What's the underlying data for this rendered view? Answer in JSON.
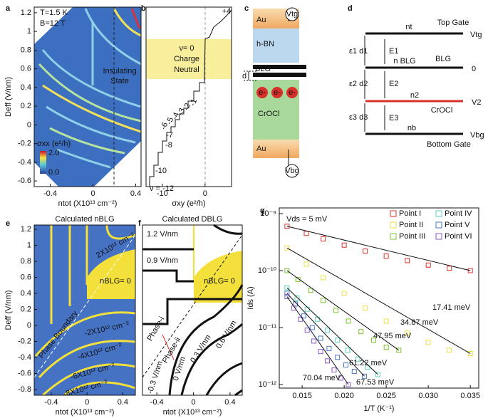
{
  "panel_labels": [
    "a",
    "b",
    "c",
    "d",
    "e",
    "f",
    "g"
  ],
  "panels": {
    "a": {
      "xlabel": "ntot (X10¹³ cm⁻²)",
      "ylabel": "Deff (V/nm)",
      "xlim": [
        -0.55,
        0.45
      ],
      "ylim": [
        -0.66,
        1.26
      ],
      "xticks": [
        -0.4,
        0,
        0.4
      ],
      "yticks": [
        -0.6,
        -0.4,
        -0.2,
        0,
        0.2,
        0.4,
        0.6,
        0.8,
        1,
        1.2
      ],
      "annotations": [
        "T=1.5 K",
        "B=12 T",
        "Insulating",
        "State"
      ],
      "colorbar": {
        "title": "σxx (e²/h)",
        "ticks": [
          "2.0",
          "0.0"
        ]
      }
    },
    "b": {
      "xlabel": "σxy (e²/h)",
      "xlim": [
        -13.8,
        6.2
      ],
      "xticks": [
        -10,
        0
      ],
      "annotations": [
        "ν= 0",
        "Charge",
        "Neutral",
        "+4",
        "-1",
        "-2",
        "-3",
        "-4",
        "-5",
        "-6",
        "-7",
        "-8",
        "-10",
        "ν = -12"
      ]
    },
    "c": {
      "annotations": [
        "Au",
        "h-BN",
        "BLG",
        "d",
        "e-",
        "e-",
        "e-",
        "CrOCl",
        "Au",
        "Vtg",
        "Vbg"
      ]
    },
    "d": {
      "annotations": [
        "Top Gate",
        "nt",
        "Vtg",
        "ε1 d1",
        "E1",
        "n BLG",
        "BLG",
        "0",
        "ε2 d2",
        "E2",
        "n2",
        "V2",
        "CrOCl",
        "ε3 d3",
        "E3",
        "nb",
        "Vbg",
        "Bottom Gate"
      ]
    },
    "e": {
      "title": "Calculated nBLG",
      "xlabel": "ntot (X10¹³ cm⁻²)",
      "ylabel": "Deff (V/nm)",
      "xlim": [
        -0.59,
        0.54
      ],
      "ylim": [
        -0.871,
        1.253
      ],
      "xticks": [
        -0.4,
        0,
        0.4
      ],
      "yticks": [
        -0.8,
        -0.6,
        -0.4,
        -0.2,
        0,
        0.2,
        0.4,
        0.6,
        0.8,
        1,
        1.2
      ],
      "annotations": [
        "2X10¹² cm⁻²",
        "nBLG= 0",
        "-2X10¹² cm⁻²",
        "-4X10¹² cm⁻²",
        "-6X10¹² cm⁻²",
        "-8X10¹² cm⁻²",
        "Phase Boundary"
      ]
    },
    "f": {
      "title": "Calculated DBLG",
      "xlabel": "ntot (X10¹³ cm⁻²)",
      "xlim": [
        -0.557,
        0.533
      ],
      "ylim": [
        -0.871,
        1.253
      ],
      "xticks": [
        -0.4,
        0,
        0.4
      ],
      "annotations": [
        "1.2 V/nm",
        "0.9 V/nm",
        "nBLG= 0",
        "0.6 V/nm",
        "0.3 V/nm",
        "0 V/nm",
        "-0.3 V/nm",
        "Phase-i",
        "Phase-ii"
      ]
    }
  },
  "chart_data": {
    "type": "scatter",
    "annotation": "Vds = 5 mV",
    "xlabel": "1/T (K⁻¹)",
    "ylabel": "Ids (A)",
    "log_y": true,
    "legend": "upper right",
    "xlim": [
      0.01228,
      0.036
    ],
    "ylim": [
      8.66e-13,
      1.26e-09
    ],
    "xticks": [
      {
        "value": 0.015,
        "label": "0.015"
      },
      {
        "value": 0.02,
        "label": "0.020"
      },
      {
        "value": 0.025,
        "label": "0.025"
      },
      {
        "value": 0.03,
        "label": "0.030"
      },
      {
        "value": 0.035,
        "label": "0.035"
      }
    ],
    "yticks": [
      {
        "value": 1e-12,
        "label": "10⁻¹²"
      },
      {
        "value": 1e-11,
        "label": "10⁻¹¹"
      },
      {
        "value": 1e-10,
        "label": "10⁻¹⁰"
      },
      {
        "value": 1e-09,
        "label": "10⁻⁹"
      }
    ],
    "series": [
      {
        "name": "Point I",
        "color": "#e0302a",
        "fit_label": "17.41 meV",
        "x": [
          0.0132,
          0.0155,
          0.0175,
          0.02,
          0.0225,
          0.025,
          0.0275,
          0.03,
          0.0325,
          0.035
        ],
        "values": [
          6e-10,
          4.5e-10,
          3.6e-10,
          2.8e-10,
          2.2e-10,
          1.8e-10,
          1.5e-10,
          1.25e-10,
          1.1e-10,
          1e-10
        ]
      },
      {
        "name": "Point II",
        "color": "#eede45",
        "fit_label": "34.87 meV",
        "x": [
          0.0132,
          0.0155,
          0.0175,
          0.02,
          0.0225,
          0.025,
          0.0275,
          0.03,
          0.0325,
          0.035
        ],
        "values": [
          2.5e-10,
          1.3e-10,
          7.5e-11,
          4e-11,
          2.2e-11,
          1.3e-11,
          8e-12,
          5.5e-12,
          4e-12,
          3.5e-12
        ]
      },
      {
        "name": "Point III",
        "color": "#7cc42c",
        "fit_label": "47.95 meV",
        "x": [
          0.0132,
          0.0145,
          0.016,
          0.0175,
          0.019,
          0.0205,
          0.022,
          0.0235,
          0.025,
          0.0265
        ],
        "values": [
          1e-10,
          7e-11,
          4.5e-11,
          3e-11,
          2e-11,
          1.3e-11,
          8.5e-12,
          6e-12,
          4.5e-12,
          4e-12
        ]
      },
      {
        "name": "Point IV",
        "color": "#5fd3c0",
        "fit_label": "61.22 meV",
        "x": [
          0.0132,
          0.0144,
          0.0156,
          0.0168,
          0.018,
          0.0192,
          0.0204,
          0.0216,
          0.0228,
          0.024
        ],
        "values": [
          5e-11,
          3.3e-11,
          2.1e-11,
          1.4e-11,
          9e-12,
          6e-12,
          4e-12,
          2.8e-12,
          2e-12,
          1.5e-12
        ]
      },
      {
        "name": "Point V",
        "color": "#4a78c8",
        "fit_label": "67.53 meV",
        "x": [
          0.0132,
          0.0142,
          0.0152,
          0.0162,
          0.0172,
          0.0182,
          0.0192,
          0.0202,
          0.0212,
          0.0224
        ],
        "values": [
          4e-11,
          2.6e-11,
          1.6e-11,
          1e-11,
          6.5e-12,
          4.3e-12,
          3e-12,
          2.2e-12,
          1.7e-12,
          1.4e-12
        ]
      },
      {
        "name": "Point VI",
        "color": "#8a5ac8",
        "fit_label": "70.04 meV",
        "x": [
          0.0132,
          0.014,
          0.0148,
          0.0156,
          0.0164,
          0.0172,
          0.018,
          0.0188,
          0.0196,
          0.0205
        ],
        "values": [
          3.5e-11,
          2.2e-11,
          1.4e-11,
          9e-12,
          5.8e-12,
          3.8e-12,
          2.6e-12,
          1.8e-12,
          1.3e-12,
          1e-12
        ]
      }
    ]
  }
}
